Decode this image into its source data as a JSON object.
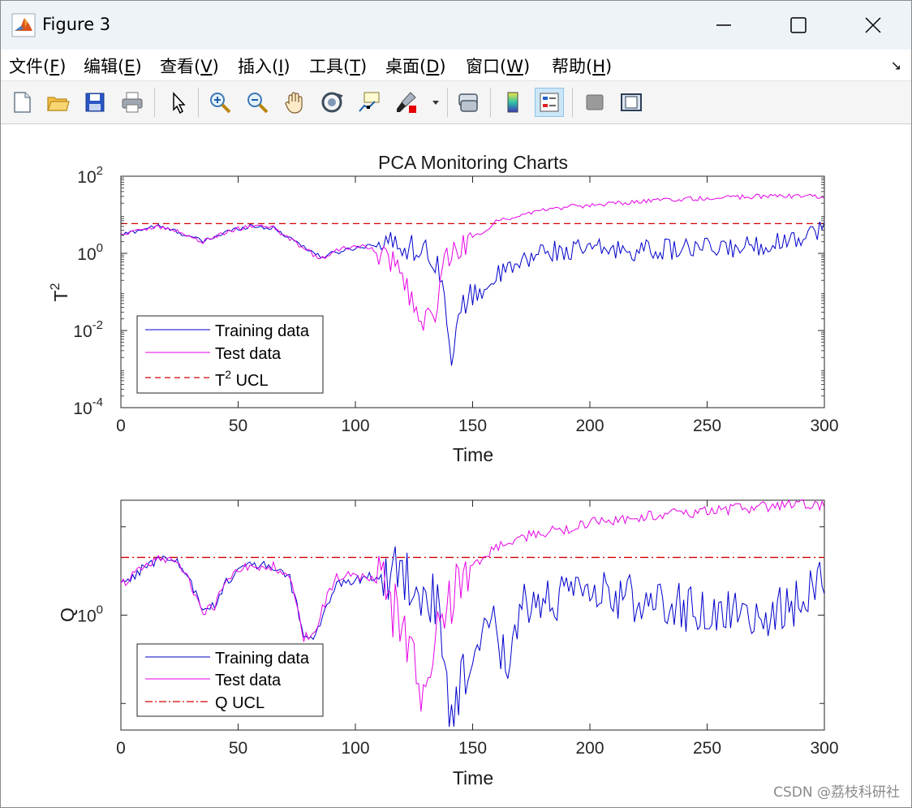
{
  "window": {
    "title": "Figure 3"
  },
  "menu": {
    "items": [
      {
        "pre": "文件(",
        "key": "F",
        "post": ")"
      },
      {
        "pre": "编辑(",
        "key": "E",
        "post": ")"
      },
      {
        "pre": "查看(",
        "key": "V",
        "post": ")"
      },
      {
        "pre": "插入(",
        "key": "I",
        "post": ")"
      },
      {
        "pre": "工具(",
        "key": "T",
        "post": ")"
      },
      {
        "pre": "桌面(",
        "key": "D",
        "post": ")"
      },
      {
        "pre": "窗口(",
        "key": "W",
        "post": ")"
      },
      {
        "pre": "帮助(",
        "key": "H",
        "post": ")"
      }
    ]
  },
  "toolbar": {
    "icons": [
      "new-file-icon",
      "open-folder-icon",
      "save-icon",
      "print-icon",
      "select-pointer-icon",
      "zoom-in-icon",
      "zoom-out-icon",
      "pan-hand-icon",
      "rotate-3d-icon",
      "data-cursor-icon",
      "brush-icon",
      "link-plot-icon",
      "colorbar-icon",
      "legend-icon",
      "hide-plot-tools-icon",
      "show-plot-tools-icon"
    ]
  },
  "watermark": "CSDN @荔枝科研社",
  "colors": {
    "training": "#0000cc",
    "test": "#e600e6",
    "ucl": "#d40000"
  },
  "chart_data": [
    {
      "type": "line",
      "title": "PCA Monitoring Charts",
      "xlabel": "Time",
      "ylabel_base": "T",
      "ylabel_sup": "2",
      "xlim": [
        0,
        300
      ],
      "ylim": [
        0.0001,
        100
      ],
      "yscale": "log",
      "xticks": [
        0,
        50,
        100,
        150,
        200,
        250,
        300
      ],
      "yticks": [
        {
          "value": 0.0001,
          "base": "10",
          "exp": "-4"
        },
        {
          "value": 0.01,
          "base": "10",
          "exp": "-2"
        },
        {
          "value": 1,
          "base": "10",
          "exp": "0"
        },
        {
          "value": 100,
          "base": "10",
          "exp": "2"
        }
      ],
      "ucl": 5.9,
      "legend": [
        "Training data",
        "Test data",
        {
          "base": "T",
          "sup": "2",
          "rest": " UCL"
        }
      ],
      "legend_position": "lower-left",
      "series": [
        {
          "name": "Training data",
          "style": "solid",
          "anchors": [
            [
              0,
              3
            ],
            [
              15,
              5.2
            ],
            [
              25,
              3.5
            ],
            [
              35,
              2
            ],
            [
              45,
              3.6
            ],
            [
              55,
              5.2
            ],
            [
              65,
              4.5
            ],
            [
              75,
              2
            ],
            [
              85,
              0.8
            ],
            [
              95,
              1.2
            ],
            [
              105,
              1.6
            ],
            [
              115,
              1.8
            ],
            [
              125,
              1.4
            ],
            [
              133,
              0.9
            ],
            [
              137,
              0.3
            ],
            [
              141,
              0.0008
            ],
            [
              145,
              0.05
            ],
            [
              150,
              0.08
            ],
            [
              155,
              0.12
            ],
            [
              160,
              0.25
            ],
            [
              170,
              0.5
            ],
            [
              180,
              1.2
            ],
            [
              190,
              1.1
            ],
            [
              200,
              1.3
            ],
            [
              220,
              1.2
            ],
            [
              240,
              1.3
            ],
            [
              260,
              1.35
            ],
            [
              280,
              1.9
            ],
            [
              300,
              4.5
            ]
          ]
        },
        {
          "name": "Test data",
          "style": "solid",
          "anchors": [
            [
              0,
              3
            ],
            [
              15,
              5.2
            ],
            [
              25,
              3.5
            ],
            [
              35,
              2
            ],
            [
              45,
              3.6
            ],
            [
              55,
              5.2
            ],
            [
              65,
              4.5
            ],
            [
              75,
              1.8
            ],
            [
              85,
              0.7
            ],
            [
              95,
              1.4
            ],
            [
              105,
              1.5
            ],
            [
              115,
              0.6
            ],
            [
              120,
              0.25
            ],
            [
              125,
              0.05
            ],
            [
              130,
              0.015
            ],
            [
              134,
              0.03
            ],
            [
              137,
              0.3
            ],
            [
              140,
              1
            ],
            [
              145,
              1.6
            ],
            [
              150,
              2.5
            ],
            [
              155,
              4
            ],
            [
              160,
              6.5
            ],
            [
              170,
              10
            ],
            [
              180,
              13
            ],
            [
              190,
              16
            ],
            [
              200,
              17
            ],
            [
              220,
              22
            ],
            [
              250,
              27
            ],
            [
              280,
              31
            ],
            [
              300,
              30
            ]
          ]
        },
        {
          "name": "UCL",
          "style": "dashed",
          "value": 5.9
        }
      ]
    },
    {
      "type": "line",
      "title": "",
      "xlabel": "Time",
      "ylabel": "Q",
      "xlim": [
        0,
        300
      ],
      "ylim": [
        0.05,
        20
      ],
      "yscale": "log",
      "xticks": [
        0,
        50,
        100,
        150,
        200,
        250,
        300
      ],
      "yticks": [
        {
          "value": 1,
          "base": "10",
          "exp": "0"
        }
      ],
      "yminor": [
        0.1,
        10
      ],
      "ucl": 4.5,
      "legend": [
        "Training data",
        "Test data",
        "Q UCL"
      ],
      "legend_position": "lower-left",
      "series": [
        {
          "name": "Training data",
          "style": "solid",
          "anchors": [
            [
              0,
              2.2
            ],
            [
              10,
              3.5
            ],
            [
              18,
              4.5
            ],
            [
              25,
              3.8
            ],
            [
              30,
              2.2
            ],
            [
              35,
              1.1
            ],
            [
              40,
              1.3
            ],
            [
              45,
              2.5
            ],
            [
              55,
              3.8
            ],
            [
              65,
              3.5
            ],
            [
              72,
              2.6
            ],
            [
              78,
              0.6
            ],
            [
              82,
              0.55
            ],
            [
              88,
              1.2
            ],
            [
              92,
              2.2
            ],
            [
              100,
              2.6
            ],
            [
              110,
              2.8
            ],
            [
              120,
              3
            ],
            [
              130,
              2
            ],
            [
              135,
              1
            ],
            [
              138,
              0.25
            ],
            [
              141,
              0.05
            ],
            [
              145,
              0.15
            ],
            [
              150,
              0.4
            ],
            [
              155,
              0.5
            ],
            [
              160,
              0.8
            ],
            [
              165,
              0.2
            ],
            [
              170,
              1.4
            ],
            [
              180,
              1.5
            ],
            [
              190,
              1.5
            ],
            [
              200,
              1.7
            ],
            [
              210,
              1.6
            ],
            [
              230,
              1.5
            ],
            [
              250,
              1
            ],
            [
              260,
              1.2
            ],
            [
              270,
              0.9
            ],
            [
              280,
              1.1
            ],
            [
              290,
              1.4
            ],
            [
              300,
              3.2
            ]
          ]
        },
        {
          "name": "Test data",
          "style": "solid",
          "anchors": [
            [
              0,
              2.2
            ],
            [
              10,
              3.5
            ],
            [
              18,
              4.5
            ],
            [
              25,
              3.8
            ],
            [
              30,
              2.2
            ],
            [
              35,
              1.1
            ],
            [
              40,
              1.3
            ],
            [
              45,
              2.5
            ],
            [
              55,
              3.8
            ],
            [
              65,
              3.5
            ],
            [
              72,
              2.6
            ],
            [
              78,
              0.55
            ],
            [
              82,
              0.6
            ],
            [
              88,
              1.6
            ],
            [
              92,
              2.6
            ],
            [
              100,
              2.8
            ],
            [
              110,
              2.5
            ],
            [
              115,
              1.5
            ],
            [
              120,
              0.6
            ],
            [
              125,
              0.3
            ],
            [
              130,
              0.12
            ],
            [
              135,
              0.5
            ],
            [
              140,
              1.5
            ],
            [
              145,
              3
            ],
            [
              150,
              4
            ],
            [
              155,
              4.5
            ],
            [
              160,
              6
            ],
            [
              170,
              7.5
            ],
            [
              180,
              8.5
            ],
            [
              190,
              9.5
            ],
            [
              200,
              11
            ],
            [
              220,
              13
            ],
            [
              250,
              15
            ],
            [
              275,
              17
            ],
            [
              290,
              18
            ],
            [
              300,
              17
            ]
          ]
        },
        {
          "name": "UCL",
          "style": "dashdot",
          "value": 4.5
        }
      ]
    }
  ]
}
